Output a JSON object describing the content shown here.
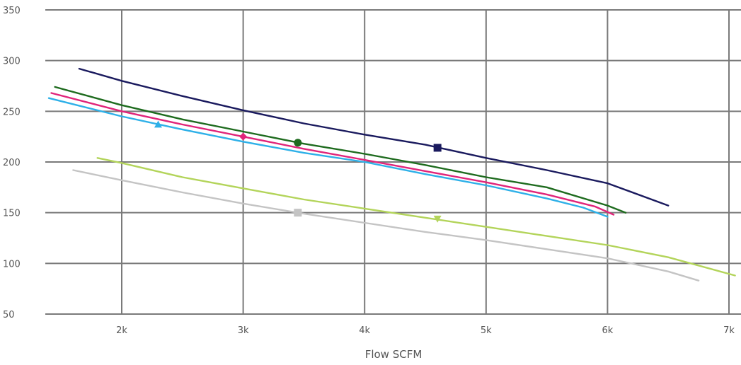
{
  "chart_data": {
    "type": "line",
    "xlabel": "Flow SCFM",
    "ylabel": "",
    "xlim": [
      1400,
      7050
    ],
    "ylim": [
      50,
      350
    ],
    "x_ticks": [
      2000,
      3000,
      4000,
      5000,
      6000,
      7000
    ],
    "x_tick_labels": [
      "2k",
      "3k",
      "4k",
      "5k",
      "6k",
      "7k"
    ],
    "y_ticks": [
      50,
      100,
      150,
      200,
      250,
      300,
      350
    ],
    "y_tick_labels": [
      "50",
      "100",
      "150",
      "200",
      "250",
      "300",
      "350"
    ],
    "grid": true,
    "series": [
      {
        "color": "#1a1a5e",
        "marker": "square",
        "marker_point": [
          4600,
          214
        ],
        "x": [
          1650,
          2000,
          2500,
          3000,
          3500,
          4000,
          4500,
          5000,
          5500,
          6000,
          6500
        ],
        "y": [
          292,
          280,
          265,
          251,
          238,
          227,
          217,
          204,
          192,
          179,
          157
        ]
      },
      {
        "color": "#1e6b1e",
        "marker": "circle",
        "marker_point": [
          3450,
          219
        ],
        "x": [
          1450,
          2000,
          2500,
          3000,
          3500,
          4000,
          4500,
          5000,
          5500,
          6000,
          6150
        ],
        "y": [
          274,
          256,
          242,
          230,
          218,
          208,
          197,
          185,
          175,
          157,
          150
        ]
      },
      {
        "color": "#e0257a",
        "marker": "diamond",
        "marker_point": [
          3000,
          225
        ],
        "x": [
          1420,
          2000,
          2500,
          3000,
          3500,
          4000,
          4500,
          5000,
          5500,
          5900,
          6050
        ],
        "y": [
          268,
          250,
          237,
          225,
          213,
          202,
          191,
          180,
          168,
          156,
          148
        ]
      },
      {
        "color": "#2eb0e8",
        "marker": "triangle-up",
        "marker_point": [
          2300,
          237
        ],
        "x": [
          1400,
          2000,
          2500,
          3000,
          3500,
          4000,
          4500,
          5000,
          5500,
          5800,
          6000
        ],
        "y": [
          263,
          245,
          232,
          220,
          209,
          200,
          188,
          177,
          164,
          155,
          146
        ]
      },
      {
        "color": "#b3d45a",
        "marker": "triangle-down",
        "marker_point": [
          4600,
          144
        ],
        "x": [
          1800,
          2000,
          2500,
          3000,
          3500,
          4000,
          4500,
          5000,
          5500,
          6000,
          6500,
          7050
        ],
        "y": [
          204,
          199,
          185,
          174,
          163,
          154,
          145,
          136,
          127,
          118,
          106,
          88
        ]
      },
      {
        "color": "#c4c4c4",
        "marker": "square",
        "marker_point": [
          3450,
          150
        ],
        "x": [
          1600,
          2000,
          2500,
          3000,
          3500,
          4000,
          4500,
          5000,
          5500,
          6000,
          6500,
          6750
        ],
        "y": [
          192,
          182,
          170,
          159,
          149,
          140,
          131,
          123,
          114,
          105,
          92,
          83
        ]
      }
    ]
  }
}
